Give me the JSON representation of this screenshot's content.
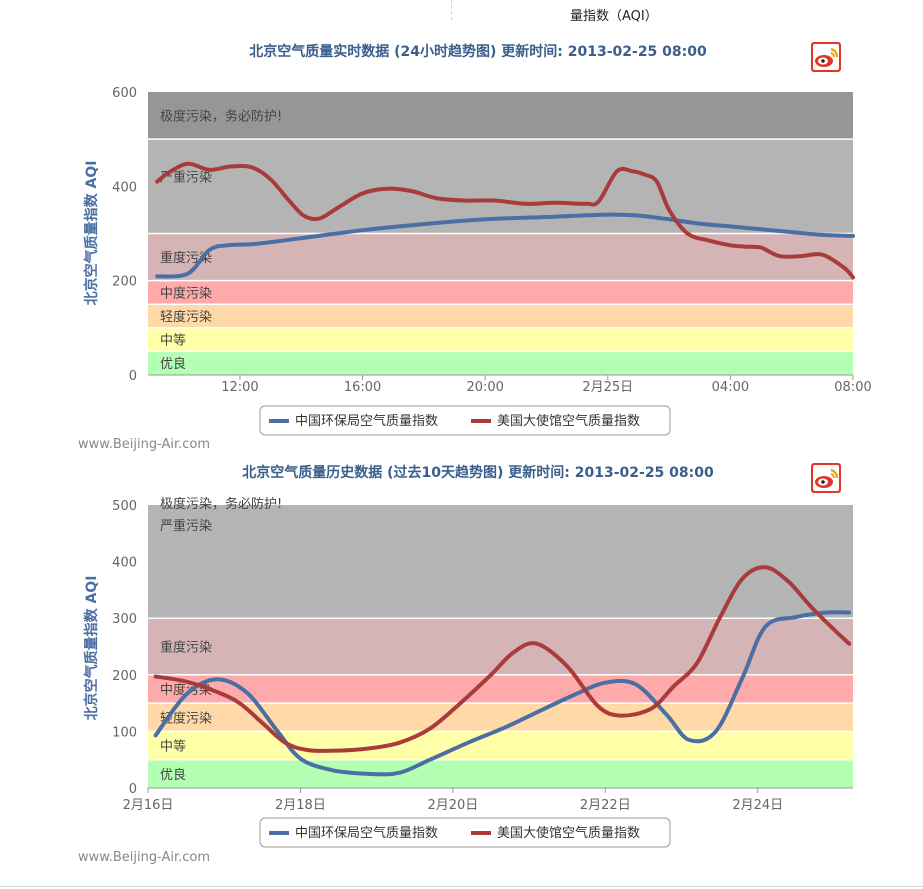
{
  "header": {
    "aqi_label": "量指数（AQI）"
  },
  "credit": "www.Beijing-Air.com",
  "legend": {
    "cn_label": "中国环保局空气质量指数",
    "us_label": "美国大使馆空气质量指数"
  },
  "colors": {
    "cn": "#4a6fa5",
    "us": "#aa3b3b",
    "title": "#3a5f8c",
    "band_good": "#b3ffb3",
    "band_moderate": "#ffffa8",
    "band_light": "#ffd9a8",
    "band_mid": "#ffaaaa",
    "band_heavy": "#d4b4b4",
    "band_severe": "#b4b4b4",
    "band_hazard": "#969696"
  },
  "icons": {
    "weibo": "weibo-icon"
  },
  "chart_data": [
    {
      "type": "line",
      "title": "北京空气质量实时数据 (24小时趋势图) 更新时间: 2013-02-25 08:00",
      "ylabel": "北京空气质量指数  AQI",
      "xlabel": "",
      "ylim": [
        0,
        600
      ],
      "yticks": [
        0,
        200,
        400,
        600
      ],
      "xlim": [
        9,
        32
      ],
      "xticks": [
        {
          "x": 12,
          "label": "12:00"
        },
        {
          "x": 16,
          "label": "16:00"
        },
        {
          "x": 20,
          "label": "20:00"
        },
        {
          "x": 24,
          "label": "2月25日"
        },
        {
          "x": 28,
          "label": "04:00"
        },
        {
          "x": 32,
          "label": "08:00"
        }
      ],
      "bands": [
        {
          "from": 0,
          "to": 50,
          "label": "优良",
          "color_key": "band_good"
        },
        {
          "from": 50,
          "to": 100,
          "label": "中等",
          "color_key": "band_moderate"
        },
        {
          "from": 100,
          "to": 150,
          "label": "轻度污染",
          "color_key": "band_light"
        },
        {
          "from": 150,
          "to": 200,
          "label": "中度污染",
          "color_key": "band_mid"
        },
        {
          "from": 200,
          "to": 300,
          "label": "重度污染",
          "color_key": "band_heavy"
        },
        {
          "from": 300,
          "to": 500,
          "label": "严重污染",
          "color_key": "band_severe"
        },
        {
          "from": 500,
          "to": 600,
          "label": "极度污染，务必防护!",
          "color_key": "band_hazard"
        }
      ],
      "series": [
        {
          "name": "中国环保局空气质量指数",
          "color_key": "cn",
          "x": [
            9.3,
            10.3,
            11.0,
            11.6,
            12.5,
            14,
            16,
            18,
            20,
            22,
            24,
            25,
            26,
            27,
            28,
            29,
            30,
            31,
            32
          ],
          "values": [
            209,
            215,
            265,
            275,
            278,
            290,
            307,
            320,
            330,
            335,
            340,
            338,
            330,
            321,
            315,
            309,
            303,
            297,
            295
          ]
        },
        {
          "name": "美国大使馆空气质量指数",
          "color_key": "us",
          "x": [
            9.3,
            9.7,
            10.3,
            11.0,
            11.7,
            12.4,
            13.0,
            13.6,
            14.1,
            14.6,
            15.2,
            16.0,
            16.8,
            17.6,
            18.4,
            19.3,
            20.3,
            21.3,
            22.3,
            23.3,
            23.7,
            24.3,
            24.8,
            25.2,
            25.6,
            26.0,
            26.6,
            27.3,
            28.0,
            28.5,
            29.0,
            29.6,
            30.3,
            31.0,
            31.7,
            32.0
          ],
          "values": [
            410,
            430,
            448,
            435,
            442,
            440,
            415,
            370,
            337,
            332,
            355,
            385,
            395,
            390,
            375,
            370,
            370,
            363,
            365,
            363,
            368,
            432,
            432,
            425,
            410,
            350,
            300,
            285,
            275,
            272,
            270,
            252,
            252,
            255,
            228,
            207
          ]
        }
      ]
    },
    {
      "type": "line",
      "title": "北京空气质量历史数据 (过去10天趋势图) 更新时间: 2013-02-25 08:00",
      "ylabel": "北京空气质量指数  AQI",
      "xlabel": "",
      "ylim": [
        0,
        500
      ],
      "yticks": [
        0,
        100,
        200,
        300,
        400,
        500
      ],
      "xlim": [
        16,
        25.25
      ],
      "xticks": [
        {
          "x": 16,
          "label": "2月16日"
        },
        {
          "x": 18,
          "label": "2月18日"
        },
        {
          "x": 20,
          "label": "2月20日"
        },
        {
          "x": 22,
          "label": "2月22日"
        },
        {
          "x": 24,
          "label": "2月24日"
        }
      ],
      "bands": [
        {
          "from": 0,
          "to": 50,
          "label": "优良",
          "color_key": "band_good"
        },
        {
          "from": 50,
          "to": 100,
          "label": "中等",
          "color_key": "band_moderate"
        },
        {
          "from": 100,
          "to": 150,
          "label": "轻度污染",
          "color_key": "band_light"
        },
        {
          "from": 150,
          "to": 200,
          "label": "中度污染",
          "color_key": "band_mid"
        },
        {
          "from": 200,
          "to": 300,
          "label": "重度污染",
          "color_key": "band_heavy"
        },
        {
          "from": 300,
          "to": 500,
          "label": "严重污染",
          "color_key": "band_severe"
        },
        {
          "from": 500,
          "to": 500,
          "label": "极度污染，务必防护!",
          "color_key": "band_hazard"
        }
      ],
      "series": [
        {
          "name": "中国环保局空气质量指数",
          "color_key": "cn",
          "x": [
            16.1,
            16.5,
            16.9,
            17.3,
            17.7,
            18.0,
            18.4,
            18.9,
            19.3,
            19.7,
            20.2,
            20.7,
            21.2,
            21.6,
            22.0,
            22.4,
            22.8,
            23.1,
            23.45,
            23.8,
            24.1,
            24.5,
            24.9,
            25.2
          ],
          "values": [
            93,
            165,
            192,
            168,
            100,
            52,
            32,
            25,
            27,
            50,
            80,
            108,
            140,
            165,
            186,
            183,
            130,
            85,
            100,
            195,
            285,
            302,
            310,
            310
          ]
        },
        {
          "name": "美国大使馆空气质量指数",
          "color_key": "us",
          "x": [
            16.1,
            16.5,
            16.9,
            17.2,
            17.5,
            17.8,
            18.1,
            18.5,
            18.9,
            19.3,
            19.7,
            20.1,
            20.5,
            20.8,
            21.1,
            21.5,
            21.9,
            22.2,
            22.6,
            22.9,
            23.2,
            23.5,
            23.8,
            24.1,
            24.4,
            24.7,
            25.0,
            25.2
          ],
          "values": [
            197,
            188,
            170,
            150,
            115,
            80,
            67,
            66,
            70,
            80,
            105,
            150,
            200,
            240,
            255,
            215,
            145,
            128,
            140,
            180,
            220,
            300,
            370,
            390,
            365,
            320,
            280,
            255
          ]
        }
      ]
    }
  ]
}
